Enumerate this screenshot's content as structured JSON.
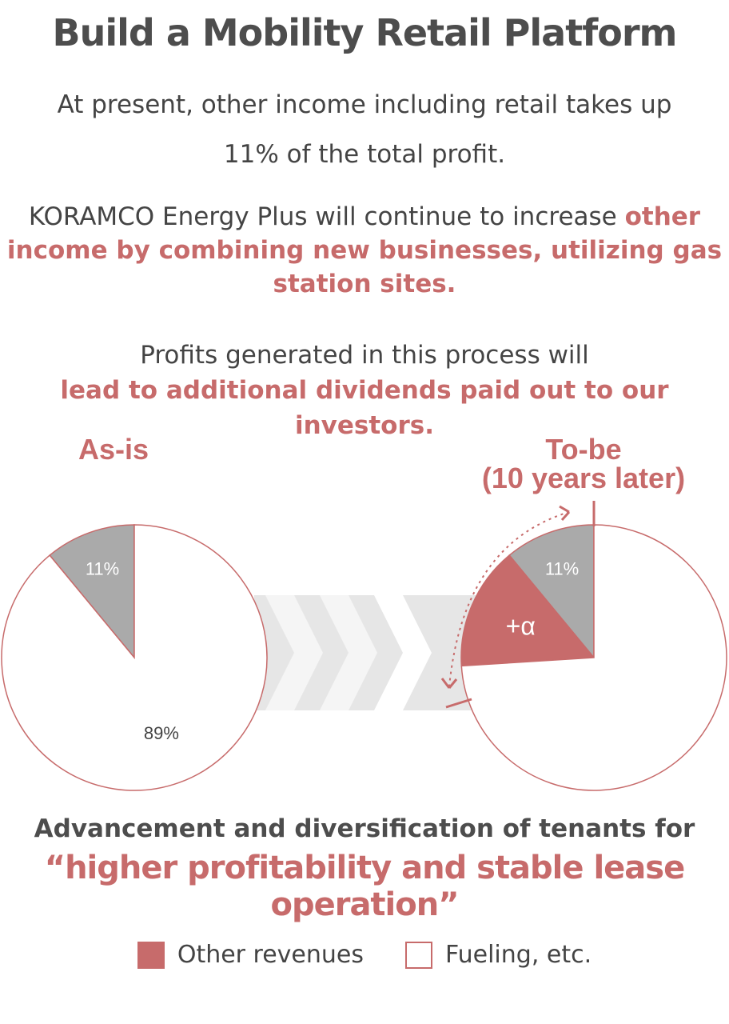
{
  "title": "Build a Mobility Retail Platform",
  "intro": {
    "line1": "At present, other income including retail takes up",
    "line2": "11% of the total profit."
  },
  "para2": {
    "normal": "KORAMCO Energy Plus will continue to increase ",
    "highlight": "other income by combining new businesses, utilizing gas station sites."
  },
  "para3": {
    "normal": "Profits generated in this process will ",
    "highlight": "lead to additional dividends paid out to our investors."
  },
  "chart_data": [
    {
      "type": "pie",
      "title": "As-is",
      "slices": [
        {
          "label": "11%",
          "value": 11,
          "color": "#aaaaaa"
        },
        {
          "label": "89%",
          "value": 89,
          "color": "#ffffff"
        }
      ]
    },
    {
      "type": "pie",
      "title": "To-be",
      "subtitle": "(10 years later)",
      "slices": [
        {
          "label": "11%",
          "value": 11,
          "color": "#aaaaaa"
        },
        {
          "label": "+α",
          "value": 15,
          "color": "#c76b6b"
        },
        {
          "label": "",
          "value": 74,
          "color": "#ffffff"
        }
      ]
    }
  ],
  "colors": {
    "accent": "#c76b6b",
    "gray_slice": "#aaaaaa",
    "arrow_band": "#e6e6e6",
    "chevron": "#f5f5f5"
  },
  "bottom": {
    "line1": "Advancement and diversification of tenants for",
    "line2": "“higher profitability and stable lease operation”"
  },
  "legend": [
    {
      "label": "Other revenues",
      "style": "filled"
    },
    {
      "label": "Fueling, etc.",
      "style": "outline"
    }
  ]
}
